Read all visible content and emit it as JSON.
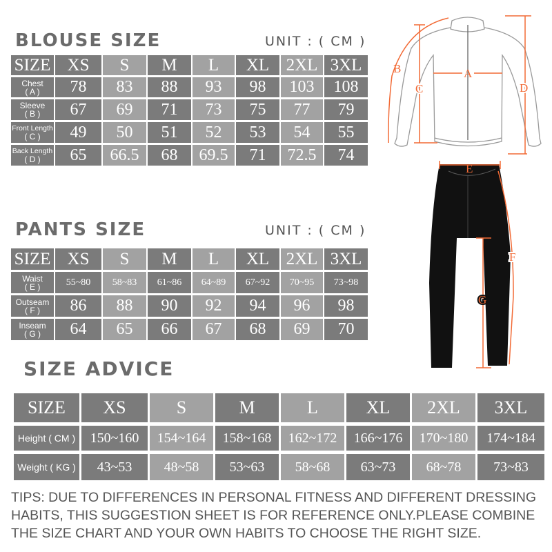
{
  "blouse": {
    "title": "BLOUSE SIZE",
    "unit": "UNIT : ( CM )",
    "headers": [
      "SIZE",
      "XS",
      "S",
      "M",
      "L",
      "XL",
      "2XL",
      "3XL"
    ],
    "rows": [
      {
        "label": "Chest",
        "code": "( A )",
        "values": [
          "78",
          "83",
          "88",
          "93",
          "98",
          "103",
          "108"
        ]
      },
      {
        "label": "Sleeve",
        "code": "( B )",
        "values": [
          "67",
          "69",
          "71",
          "73",
          "75",
          "77",
          "79"
        ]
      },
      {
        "label": "Front Length",
        "code": "( C )",
        "values": [
          "49",
          "50",
          "51",
          "52",
          "53",
          "54",
          "55"
        ]
      },
      {
        "label": "Back Length",
        "code": "( D )",
        "values": [
          "65",
          "66.5",
          "68",
          "69.5",
          "71",
          "72.5",
          "74"
        ]
      }
    ]
  },
  "pants": {
    "title": "PANTS SIZE",
    "unit": "UNIT : ( CM )",
    "headers": [
      "SIZE",
      "XS",
      "S",
      "M",
      "L",
      "XL",
      "2XL",
      "3XL"
    ],
    "rows": [
      {
        "label": "Waist",
        "code": "( E )",
        "values": [
          "55~80",
          "58~83",
          "61~86",
          "64~89",
          "67~92",
          "70~95",
          "73~98"
        ]
      },
      {
        "label": "Outseam",
        "code": "( F )",
        "values": [
          "86",
          "88",
          "90",
          "92",
          "94",
          "96",
          "98"
        ]
      },
      {
        "label": "Inseam",
        "code": "( G )",
        "values": [
          "64",
          "65",
          "66",
          "67",
          "68",
          "69",
          "70"
        ]
      }
    ]
  },
  "advice": {
    "title": "SIZE ADVICE",
    "headers": [
      "SIZE",
      "XS",
      "S",
      "M",
      "L",
      "XL",
      "2XL",
      "3XL"
    ],
    "rows": [
      {
        "label": "Height ( CM )",
        "values": [
          "150~160",
          "154~164",
          "158~168",
          "162~172",
          "166~176",
          "170~180",
          "174~184"
        ]
      },
      {
        "label": "Weight ( KG )",
        "values": [
          "43~53",
          "48~58",
          "53~63",
          "58~68",
          "63~73",
          "68~78",
          "73~83"
        ]
      }
    ]
  },
  "figure": {
    "labels": {
      "A": "A",
      "B": "B",
      "C": "C",
      "D": "D",
      "E": "E",
      "F": "F",
      "G": "G"
    },
    "measure_color": "#f26a35"
  },
  "tips": "TIPS: DUE TO DIFFERENCES IN PERSONAL FITNESS AND DIFFERENT DRESSING HABITS, THIS SUGGESTION SHEET IS FOR REFERENCE ONLY.PLEASE COMBINE THE SIZE CHART AND YOUR OWN HABITS TO CHOOSE THE RIGHT SIZE."
}
